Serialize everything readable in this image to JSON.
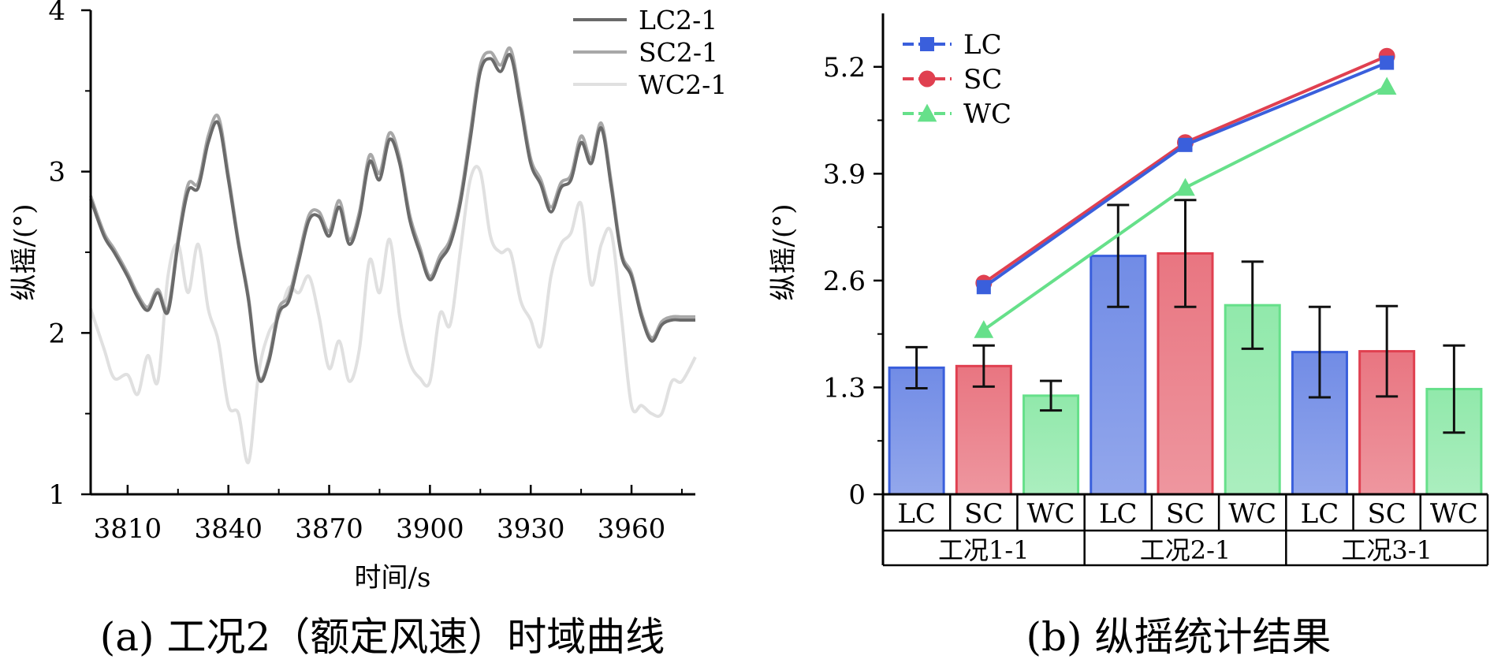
{
  "colors": {
    "LC2-1": "#6a6a6a",
    "SC2-1": "#a8a8a8",
    "WC2-1": "#e0e0e0",
    "LC": "#3a5fdc",
    "SC": "#e04050",
    "WC": "#66e08a"
  },
  "panel_a": {
    "caption": "(a) 工况2（额定风速）时域曲线"
  },
  "panel_b": {
    "caption": "(b) 纵摇统计结果"
  },
  "chart_data": [
    {
      "type": "line",
      "title": "(a) 工况2（额定风速）时域曲线",
      "xlabel": "时间/s",
      "ylabel": "纵摇/(°)",
      "xlim": [
        3799,
        3979
      ],
      "ylim": [
        1,
        4
      ],
      "xticks": [
        3810,
        3840,
        3870,
        3900,
        3930,
        3960
      ],
      "yticks": [
        1,
        2,
        3,
        4
      ],
      "legend": "top-right",
      "series": [
        {
          "name": "LC2-1",
          "x": [
            3799,
            3803,
            3806,
            3810,
            3813,
            3816,
            3819,
            3822,
            3825,
            3828,
            3831,
            3834,
            3837,
            3840,
            3843,
            3846,
            3849,
            3852,
            3855,
            3858,
            3861,
            3864,
            3867,
            3870,
            3873,
            3876,
            3879,
            3882,
            3885,
            3888,
            3891,
            3894,
            3897,
            3900,
            3903,
            3906,
            3909,
            3912,
            3915,
            3918,
            3921,
            3924,
            3927,
            3930,
            3933,
            3936,
            3939,
            3942,
            3945,
            3948,
            3951,
            3954,
            3957,
            3960,
            3963,
            3966,
            3969,
            3972,
            3975,
            3979
          ],
          "values": [
            2.83,
            2.6,
            2.5,
            2.35,
            2.22,
            2.14,
            2.25,
            2.13,
            2.55,
            2.88,
            2.9,
            3.18,
            3.3,
            2.95,
            2.55,
            2.2,
            1.72,
            1.82,
            2.12,
            2.2,
            2.45,
            2.7,
            2.72,
            2.6,
            2.78,
            2.55,
            2.72,
            3.06,
            2.95,
            3.2,
            3.05,
            2.7,
            2.5,
            2.33,
            2.45,
            2.55,
            2.8,
            3.2,
            3.62,
            3.7,
            3.62,
            3.72,
            3.4,
            3.05,
            2.92,
            2.75,
            2.9,
            2.95,
            3.18,
            3.05,
            3.27,
            2.9,
            2.48,
            2.35,
            2.1,
            1.95,
            2.05,
            2.08,
            2.08,
            2.08
          ]
        },
        {
          "name": "SC2-1",
          "x": [
            3799,
            3803,
            3806,
            3810,
            3813,
            3816,
            3819,
            3822,
            3825,
            3828,
            3831,
            3834,
            3837,
            3840,
            3843,
            3846,
            3849,
            3852,
            3855,
            3858,
            3861,
            3864,
            3867,
            3870,
            3873,
            3876,
            3879,
            3882,
            3885,
            3888,
            3891,
            3894,
            3897,
            3900,
            3903,
            3906,
            3909,
            3912,
            3915,
            3918,
            3921,
            3924,
            3927,
            3930,
            3933,
            3936,
            3939,
            3942,
            3945,
            3948,
            3951,
            3954,
            3957,
            3960,
            3963,
            3966,
            3969,
            3972,
            3975,
            3979
          ],
          "values": [
            2.85,
            2.62,
            2.52,
            2.37,
            2.24,
            2.16,
            2.27,
            2.15,
            2.58,
            2.92,
            2.93,
            3.22,
            3.34,
            2.98,
            2.57,
            2.22,
            1.73,
            1.84,
            2.15,
            2.23,
            2.48,
            2.73,
            2.75,
            2.63,
            2.82,
            2.58,
            2.75,
            3.1,
            2.99,
            3.24,
            3.08,
            2.73,
            2.53,
            2.35,
            2.48,
            2.58,
            2.83,
            3.24,
            3.66,
            3.74,
            3.66,
            3.76,
            3.44,
            3.08,
            2.95,
            2.78,
            2.93,
            2.98,
            3.22,
            3.08,
            3.3,
            2.93,
            2.5,
            2.37,
            2.12,
            1.97,
            2.07,
            2.1,
            2.1,
            2.1
          ]
        },
        {
          "name": "WC2-1",
          "x": [
            3799,
            3803,
            3806,
            3810,
            3813,
            3816,
            3819,
            3822,
            3825,
            3828,
            3831,
            3834,
            3837,
            3840,
            3843,
            3846,
            3849,
            3852,
            3855,
            3858,
            3861,
            3864,
            3867,
            3870,
            3873,
            3876,
            3879,
            3882,
            3885,
            3888,
            3891,
            3894,
            3897,
            3900,
            3903,
            3906,
            3909,
            3912,
            3915,
            3918,
            3921,
            3924,
            3927,
            3930,
            3933,
            3936,
            3939,
            3942,
            3945,
            3948,
            3951,
            3954,
            3957,
            3960,
            3963,
            3966,
            3969,
            3972,
            3975,
            3979
          ],
          "values": [
            2.15,
            1.9,
            1.72,
            1.74,
            1.62,
            1.86,
            1.7,
            2.35,
            2.55,
            2.25,
            2.55,
            2.15,
            1.95,
            1.55,
            1.5,
            1.2,
            1.75,
            2.0,
            2.1,
            2.28,
            2.25,
            2.35,
            2.1,
            1.78,
            1.95,
            1.7,
            1.9,
            2.45,
            2.25,
            2.58,
            2.1,
            1.82,
            1.72,
            1.7,
            2.12,
            2.05,
            2.5,
            2.95,
            3.0,
            2.6,
            2.5,
            2.5,
            2.2,
            2.08,
            1.92,
            2.35,
            2.55,
            2.62,
            2.8,
            2.3,
            2.55,
            2.62,
            2.1,
            1.55,
            1.55,
            1.5,
            1.5,
            1.7,
            1.7,
            1.85
          ]
        }
      ]
    },
    {
      "type": "bar",
      "title": "(b) 纵摇统计结果",
      "ylabel": "纵摇/(°)",
      "ylim": [
        0,
        5.85
      ],
      "yticks": [
        "0",
        "1.3",
        "2.6",
        "3.9",
        "5.2"
      ],
      "legend": "top-left",
      "groups": [
        "工况1-1",
        "工况2-1",
        "工况3-1"
      ],
      "categories": [
        "LC",
        "SC",
        "WC"
      ],
      "series": [
        {
          "name": "LC",
          "values": [
            1.54,
            2.9,
            1.73
          ],
          "error": [
            0.25,
            0.62,
            0.55
          ]
        },
        {
          "name": "SC",
          "values": [
            1.56,
            2.93,
            1.74
          ],
          "error": [
            0.25,
            0.65,
            0.55
          ]
        },
        {
          "name": "WC",
          "values": [
            1.2,
            2.3,
            1.28
          ],
          "error": [
            0.18,
            0.53,
            0.53
          ]
        }
      ],
      "line_series": [
        {
          "name": "LC",
          "marker": "square",
          "values": [
            2.52,
            4.25,
            5.25
          ]
        },
        {
          "name": "SC",
          "marker": "circle",
          "values": [
            2.57,
            4.28,
            5.33
          ]
        },
        {
          "name": "WC",
          "marker": "triangle",
          "values": [
            2.0,
            3.73,
            4.96
          ]
        }
      ]
    }
  ]
}
